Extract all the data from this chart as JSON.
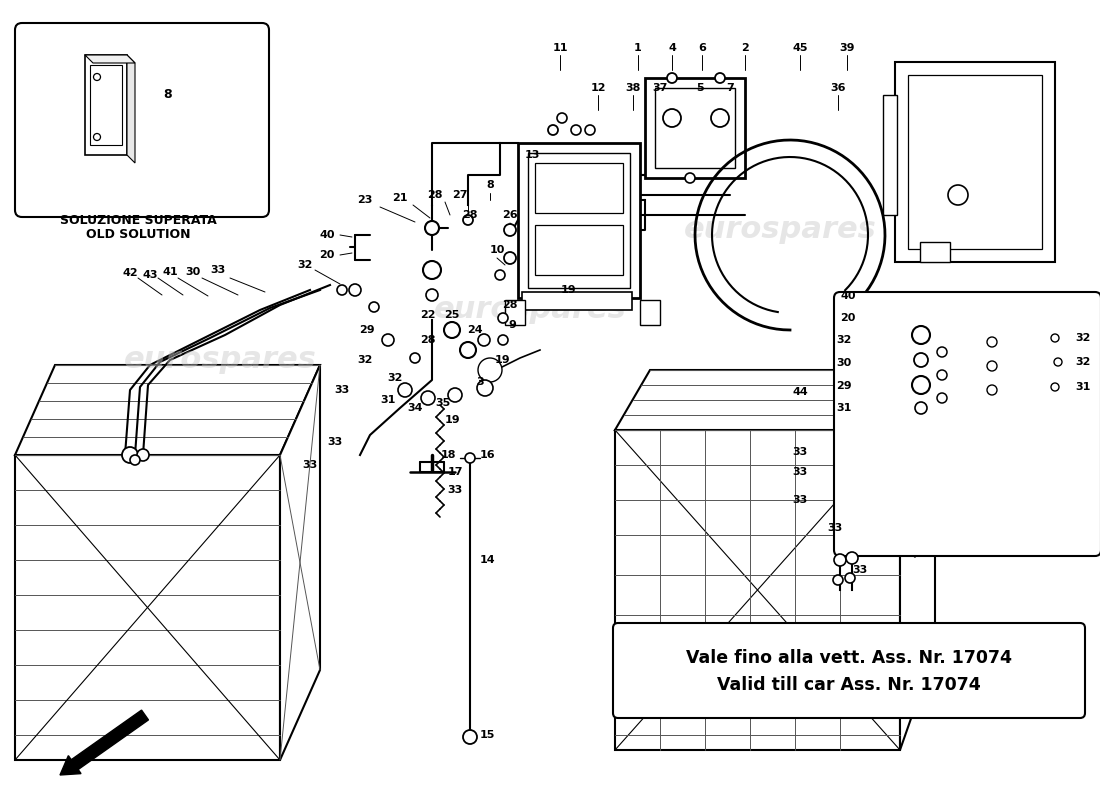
{
  "bg_color": "#ffffff",
  "lc": "#000000",
  "watermark": "eurospares",
  "old_sol_1": "SOLUZIONE SUPERATA",
  "old_sol_2": "OLD SOLUTION",
  "note_1": "Vale fino alla vett. Ass. Nr. 17074",
  "note_2": "Valid till car Ass. Nr. 17074"
}
